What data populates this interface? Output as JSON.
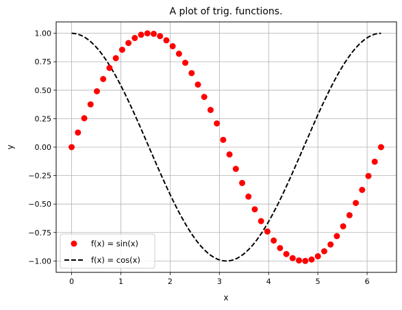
{
  "chart_data": {
    "type": "line",
    "title": "A plot of trig. functions.",
    "xlabel": "x",
    "ylabel": "y",
    "xlim": [
      -0.314,
      6.597
    ],
    "ylim": [
      -1.1,
      1.1
    ],
    "xticks": [
      0,
      1,
      2,
      3,
      4,
      5,
      6
    ],
    "xtick_labels": [
      "0",
      "1",
      "2",
      "3",
      "4",
      "5",
      "6"
    ],
    "yticks": [
      -1.0,
      -0.75,
      -0.5,
      -0.25,
      0.0,
      0.25,
      0.5,
      0.75,
      1.0
    ],
    "ytick_labels": [
      "−1.00",
      "−0.75",
      "−0.50",
      "−0.25",
      "0.00",
      "0.25",
      "0.50",
      "0.75",
      "1.00"
    ],
    "grid": true,
    "legend_position": "lower-left",
    "x": [
      0,
      0.1282,
      0.2565,
      0.3847,
      0.5129,
      0.6411,
      0.7694,
      0.8976,
      1.0258,
      1.1541,
      1.2823,
      1.4105,
      1.5387,
      1.667,
      1.7952,
      1.9234,
      2.0517,
      2.1799,
      2.3081,
      2.4363,
      2.5646,
      2.6928,
      2.821,
      2.9493,
      3.0775,
      3.2057,
      3.3339,
      3.4622,
      3.5904,
      3.7186,
      3.8469,
      3.9751,
      4.1033,
      4.2315,
      4.3598,
      4.488,
      4.6162,
      4.7445,
      4.8727,
      5.0009,
      5.1291,
      5.2574,
      5.3856,
      5.5138,
      5.6421,
      5.7703,
      5.8985,
      6.0267,
      6.155,
      6.2832
    ],
    "series": [
      {
        "name": "f(x) = sin(x)",
        "style": "markers",
        "color": "#ff0000",
        "y": [
          0.0,
          0.1279,
          0.2537,
          0.3753,
          0.4907,
          0.5981,
          0.6956,
          0.7818,
          0.8551,
          0.9144,
          0.9587,
          0.9872,
          0.9995,
          0.9954,
          0.9749,
          0.9383,
          0.8865,
          0.8203,
          0.741,
          0.6502,
          0.5496,
          0.441,
          0.3265,
          0.2084,
          0.0641,
          -0.0641,
          -0.1912,
          -0.3151,
          -0.4344,
          -0.546,
          -0.6499,
          -0.7409,
          -0.8208,
          -0.8864,
          -0.9389,
          -0.9749,
          -0.9954,
          -0.9995,
          -0.9872,
          -0.9587,
          -0.9144,
          -0.8551,
          -0.7818,
          -0.6956,
          -0.5981,
          -0.4907,
          -0.3753,
          -0.2537,
          -0.1279,
          0.0
        ]
      },
      {
        "name": "f(x) = cos(x)",
        "style": "dashed",
        "color": "#000000",
        "y": [
          1.0,
          0.9918,
          0.9673,
          0.9269,
          0.8713,
          0.8014,
          0.7183,
          0.6235,
          0.5184,
          0.4048,
          0.2846,
          0.1596,
          0.0321,
          -0.0959,
          -0.2224,
          -0.3453,
          -0.4625,
          -0.572,
          -0.6716,
          -0.76,
          -0.8355,
          -0.8975,
          -0.9452,
          -0.9781,
          -0.998,
          -0.998,
          -0.9816,
          -0.949,
          -0.9007,
          -0.8378,
          -0.7602,
          -0.6715,
          -0.5708,
          -0.4625,
          -0.3441,
          -0.2225,
          -0.0918,
          0.032,
          0.1597,
          0.2865,
          0.4049,
          0.5185,
          0.6235,
          0.7184,
          0.8015,
          0.8713,
          0.927,
          0.9673,
          0.9918,
          1.0
        ]
      }
    ]
  }
}
